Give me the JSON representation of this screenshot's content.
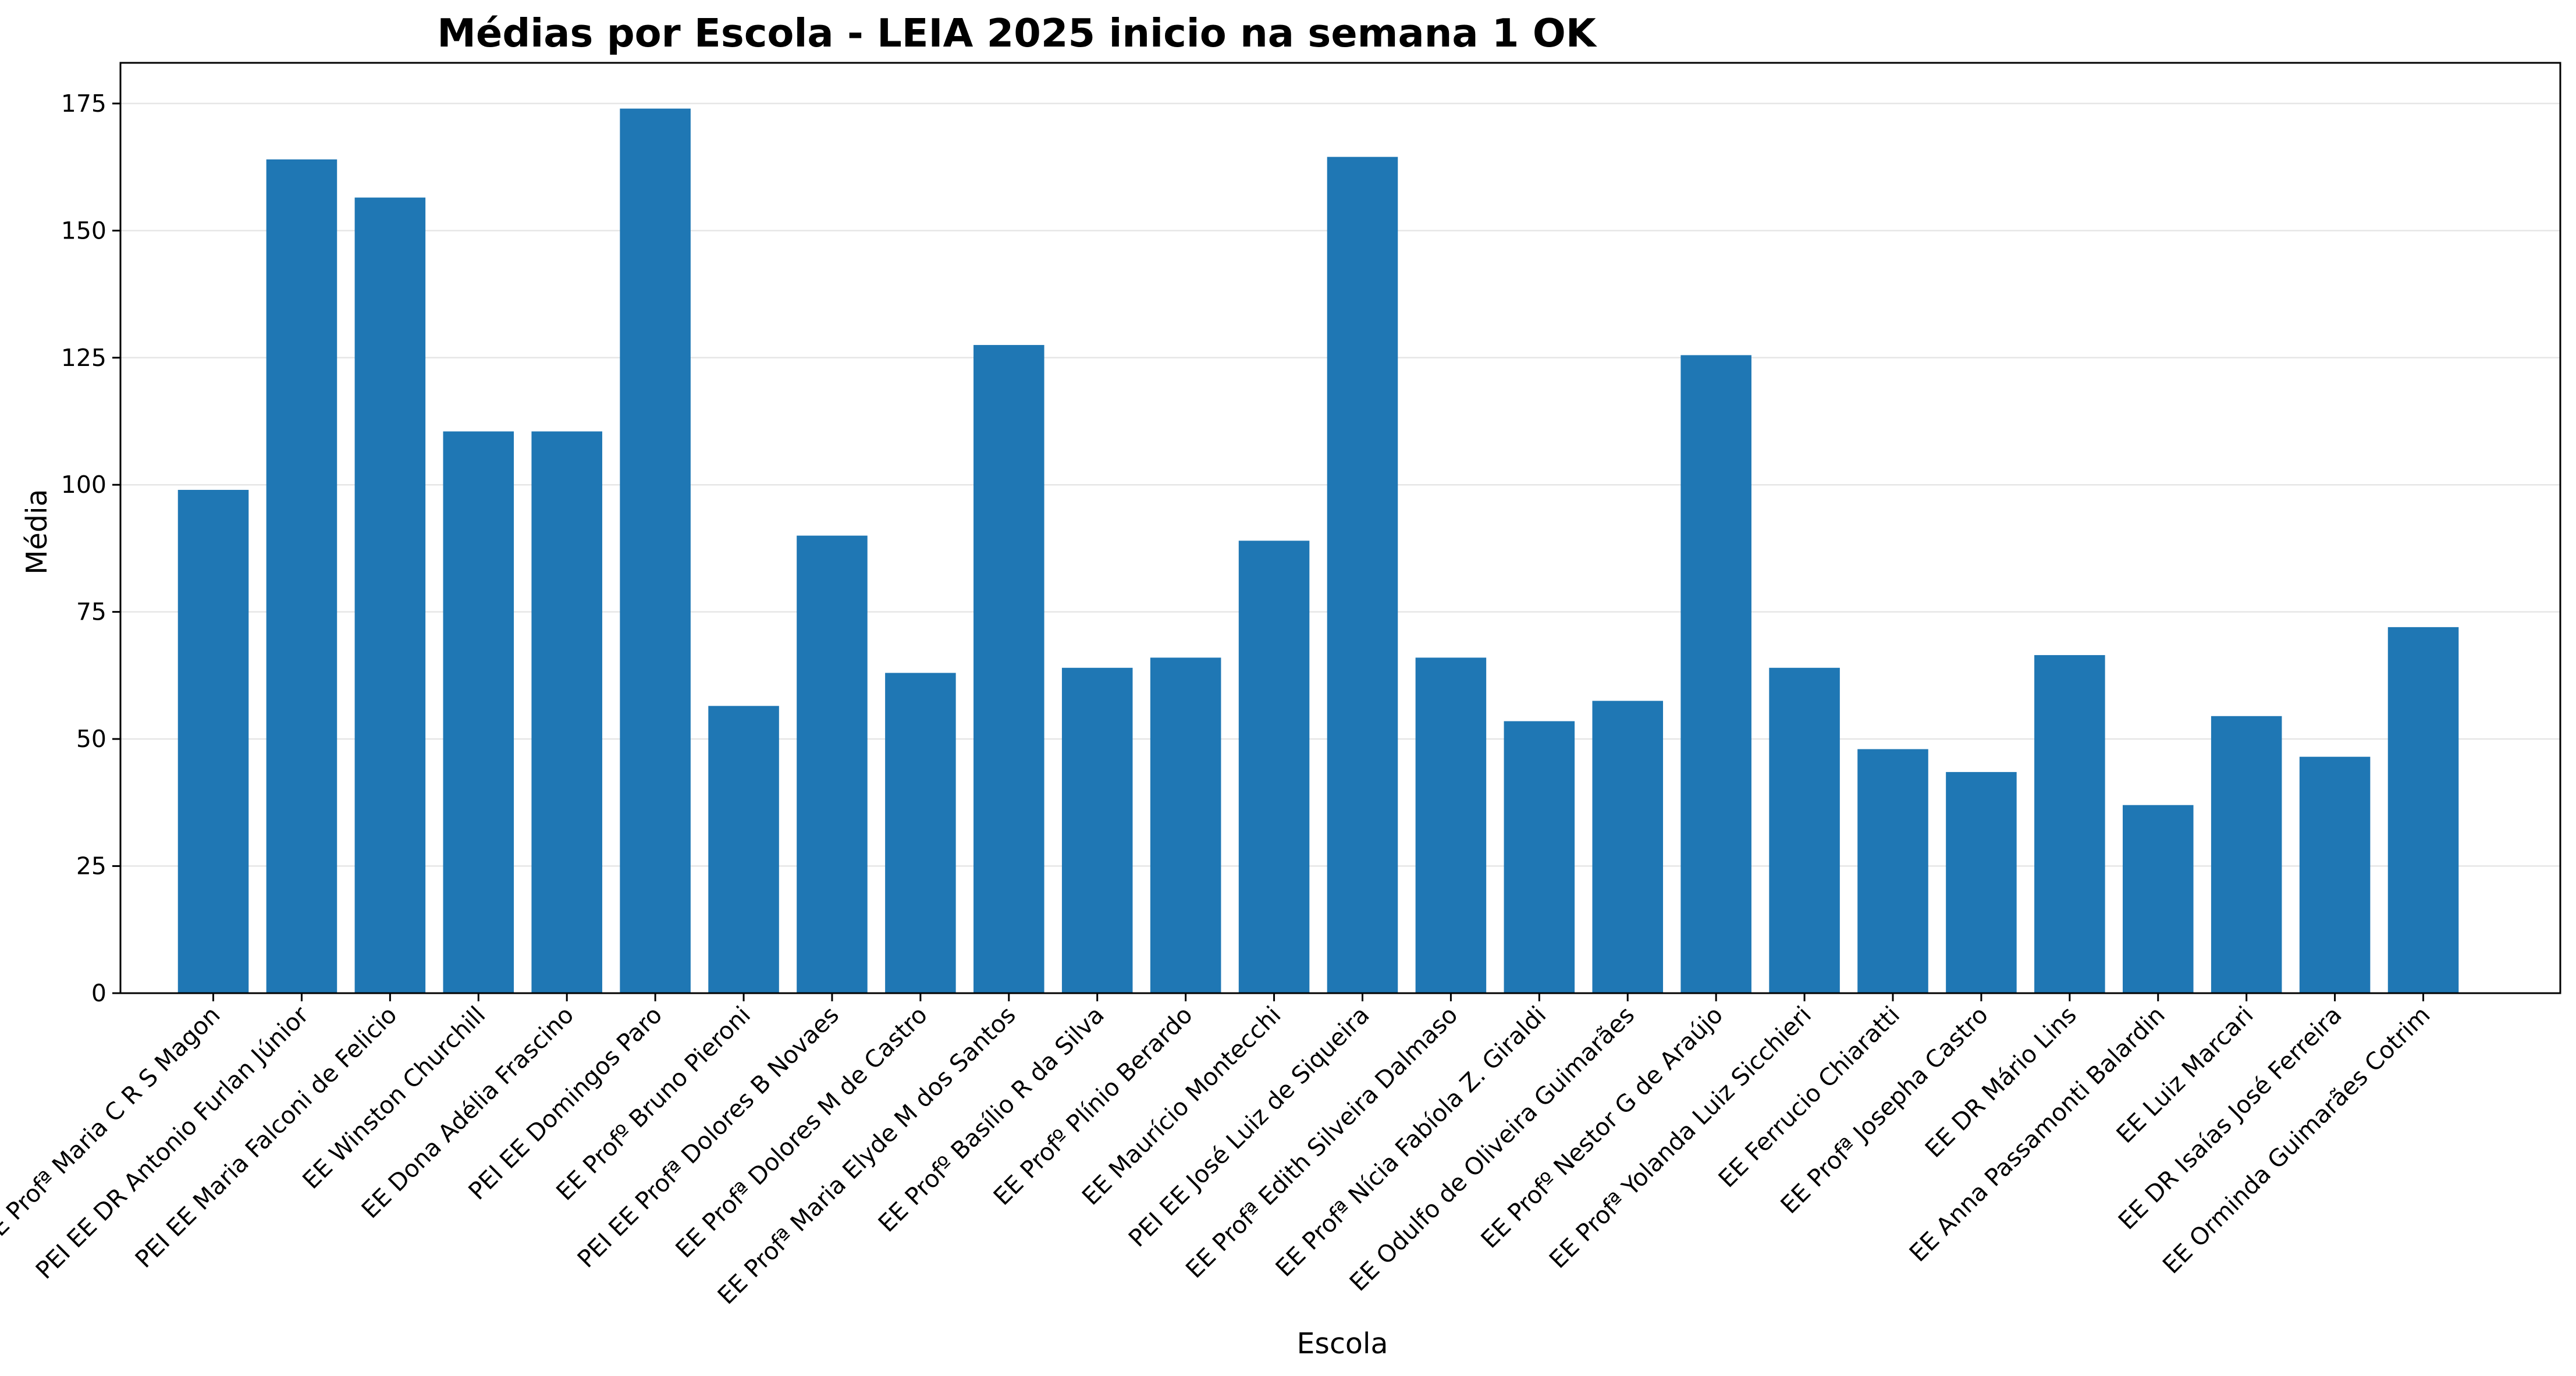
{
  "chart_data": {
    "type": "bar",
    "title": "Médias por Escola - LEIA 2025 inicio na semana 1  OK",
    "xlabel": "Escola",
    "ylabel": "Média",
    "ylim": [
      0,
      183
    ],
    "yticks": [
      0,
      25,
      50,
      75,
      100,
      125,
      150,
      175
    ],
    "grid": "horizontal",
    "legend": "none",
    "bar_color": "#1f77b4",
    "categories": [
      "EE Profª Maria C R S Magon",
      "PEI EE DR Antonio Furlan Júnior",
      "PEI EE Maria Falconi de Felicio",
      "EE Winston Churchill",
      "EE Dona Adélia Frascino",
      "PEI EE Domingos Paro",
      "EE Profº Bruno Pieroni",
      "PEI EE Profª Dolores B Novaes",
      "EE Profª Dolores M de Castro",
      "EE Profª Maria Elyde M dos Santos",
      "EE Profº Basílio R da Silva",
      "EE Profº Plínio Berardo",
      "EE Maurício Montecchi",
      "PEI EE José Luiz de Siqueira",
      "EE Profª Edith Silveira Dalmaso",
      "EE Profª Nícia Fabíola Z. Giraldi",
      "EE Odulfo de Oliveira Guimarães",
      "EE Profº Nestor G de Araújo",
      "EE Profª Yolanda Luiz Sicchieri",
      "EE Ferrucio Chiaratti",
      "EE Profª Josepha Castro",
      "EE DR Mário Lins",
      "EE Anna Passamonti Balardin",
      "EE Luiz Marcari",
      "EE DR Isaías José Ferreira",
      "EE Orminda Guimarães Cotrim"
    ],
    "values": [
      99,
      164,
      156.5,
      110.5,
      110.5,
      174,
      56.5,
      90,
      63,
      127.5,
      64,
      66,
      89,
      164.5,
      66,
      53.5,
      57.5,
      125.5,
      64,
      48,
      43.5,
      66.5,
      37,
      54.5,
      46.5,
      72
    ]
  }
}
